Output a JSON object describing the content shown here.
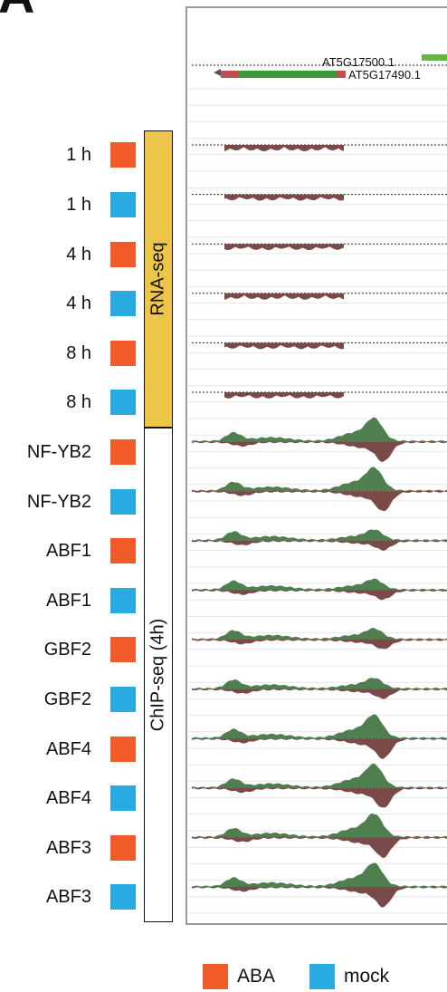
{
  "panel_letter": "A",
  "genes": {
    "gene1": "AT5G17500.1",
    "gene2": "AT5G17490.1"
  },
  "groups": [
    {
      "label": "RNA-seq",
      "color": "#edc548",
      "rows": [
        0,
        5
      ]
    },
    {
      "label": "ChIP-seq (4h)",
      "color": "#ffffff",
      "rows": [
        6,
        15
      ]
    }
  ],
  "tracks": [
    {
      "label": "1 h",
      "condition": "ABA",
      "assay": "rna"
    },
    {
      "label": "1 h",
      "condition": "mock",
      "assay": "rna"
    },
    {
      "label": "4 h",
      "condition": "ABA",
      "assay": "rna"
    },
    {
      "label": "4 h",
      "condition": "mock",
      "assay": "rna"
    },
    {
      "label": "8 h",
      "condition": "ABA",
      "assay": "rna"
    },
    {
      "label": "8 h",
      "condition": "mock",
      "assay": "rna"
    },
    {
      "label": "NF-YB2",
      "condition": "ABA",
      "assay": "chip"
    },
    {
      "label": "NF-YB2",
      "condition": "mock",
      "assay": "chip"
    },
    {
      "label": "ABF1",
      "condition": "ABA",
      "assay": "chip"
    },
    {
      "label": "ABF1",
      "condition": "mock",
      "assay": "chip"
    },
    {
      "label": "GBF2",
      "condition": "ABA",
      "assay": "chip"
    },
    {
      "label": "GBF2",
      "condition": "mock",
      "assay": "chip"
    },
    {
      "label": "ABF4",
      "condition": "ABA",
      "assay": "chip"
    },
    {
      "label": "ABF4",
      "condition": "mock",
      "assay": "chip"
    },
    {
      "label": "ABF3",
      "condition": "ABA",
      "assay": "chip"
    },
    {
      "label": "ABF3",
      "condition": "mock",
      "assay": "chip"
    }
  ],
  "legend": [
    {
      "label": "ABA",
      "color": "#f15a29"
    },
    {
      "label": "mock",
      "color": "#29aae1"
    }
  ],
  "colors": {
    "ABA": "#f15a29",
    "mock": "#29aae1",
    "signal_positive": "#4f7f4f",
    "signal_negative": "#7a4a48",
    "gene_exon": "#3a9a3a",
    "gene_utr": "#c05050"
  }
}
